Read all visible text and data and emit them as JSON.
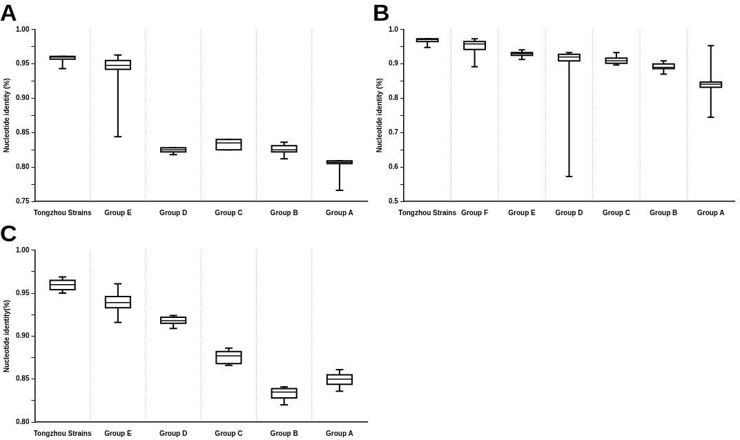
{
  "chart_data": [
    {
      "type": "box",
      "title": "A",
      "ylabel": "Nucleotide identity (%)",
      "categories": [
        "Tongzhou Strains",
        "Group E",
        "Group D",
        "Group C",
        "Group B",
        "Group A"
      ],
      "boxes": [
        {
          "low": 0.943,
          "q1": 0.957,
          "median": 0.96,
          "q3": 0.961,
          "high": 0.961
        },
        {
          "low": 0.844,
          "q1": 0.942,
          "median": 0.948,
          "q3": 0.955,
          "high": 0.963
        },
        {
          "low": 0.818,
          "q1": 0.822,
          "median": 0.825,
          "q3": 0.828,
          "high": 0.828
        },
        {
          "low": 0.825,
          "q1": 0.825,
          "median": 0.835,
          "q3": 0.84,
          "high": 0.84
        },
        {
          "low": 0.812,
          "q1": 0.822,
          "median": 0.825,
          "q3": 0.831,
          "high": 0.836
        },
        {
          "low": 0.766,
          "q1": 0.805,
          "median": 0.807,
          "q3": 0.809,
          "high": 0.809
        }
      ],
      "color": "#000000",
      "ylim": [
        0.75,
        1.0
      ],
      "yticks": [
        {
          "value": 0.75,
          "label": "0.75"
        },
        {
          "value": 0.775,
          "label": null
        },
        {
          "value": 0.8,
          "label": "0.80"
        },
        {
          "value": 0.825,
          "label": null
        },
        {
          "value": 0.85,
          "label": "0.85"
        },
        {
          "value": 0.875,
          "label": null
        },
        {
          "value": 0.9,
          "label": "0.90"
        },
        {
          "value": 0.925,
          "label": null
        },
        {
          "value": 0.95,
          "label": "0.95"
        },
        {
          "value": 0.975,
          "label": null
        },
        {
          "value": 1.0,
          "label": "1.00"
        }
      ],
      "grid": "x",
      "legend": false
    },
    {
      "type": "box",
      "title": "B",
      "ylabel": "Nucleotide identity (%)",
      "categories": [
        "Tongzhou Strains",
        "Group F",
        "Group E",
        "Group D",
        "Group C",
        "Group B",
        "Group A"
      ],
      "boxes": [
        {
          "low": 0.948,
          "q1": 0.965,
          "median": 0.971,
          "q3": 0.973,
          "high": 0.973
        },
        {
          "low": 0.892,
          "q1": 0.942,
          "median": 0.958,
          "q3": 0.965,
          "high": 0.973
        },
        {
          "low": 0.913,
          "q1": 0.925,
          "median": 0.93,
          "q3": 0.933,
          "high": 0.941
        },
        {
          "low": 0.572,
          "q1": 0.909,
          "median": 0.92,
          "q3": 0.928,
          "high": 0.933
        },
        {
          "low": 0.897,
          "q1": 0.902,
          "median": 0.909,
          "q3": 0.917,
          "high": 0.933
        },
        {
          "low": 0.87,
          "q1": 0.886,
          "median": 0.89,
          "q3": 0.9,
          "high": 0.909
        },
        {
          "low": 0.745,
          "q1": 0.832,
          "median": 0.841,
          "q3": 0.847,
          "high": 0.953
        }
      ],
      "color": "#000000",
      "ylim": [
        0.5,
        1.0
      ],
      "yticks": [
        {
          "value": 0.5,
          "label": "0.5"
        },
        {
          "value": 0.55,
          "label": null
        },
        {
          "value": 0.6,
          "label": "0.6"
        },
        {
          "value": 0.65,
          "label": null
        },
        {
          "value": 0.7,
          "label": "0.7"
        },
        {
          "value": 0.75,
          "label": null
        },
        {
          "value": 0.8,
          "label": "0.8"
        },
        {
          "value": 0.85,
          "label": null
        },
        {
          "value": 0.9,
          "label": "0.9"
        },
        {
          "value": 0.95,
          "label": null
        },
        {
          "value": 1.0,
          "label": "1.0"
        }
      ],
      "grid": "x",
      "legend": false
    },
    {
      "type": "box",
      "title": "C",
      "ylabel": "Nucleotide identity(%)",
      "categories": [
        "Tongzhou Strains",
        "Group E",
        "Group D",
        "Group C",
        "Group B",
        "Group A"
      ],
      "boxes": [
        {
          "low": 0.95,
          "q1": 0.954,
          "median": 0.96,
          "q3": 0.965,
          "high": 0.969
        },
        {
          "low": 0.916,
          "q1": 0.933,
          "median": 0.939,
          "q3": 0.946,
          "high": 0.961
        },
        {
          "low": 0.909,
          "q1": 0.915,
          "median": 0.918,
          "q3": 0.922,
          "high": 0.924
        },
        {
          "low": 0.866,
          "q1": 0.868,
          "median": 0.877,
          "q3": 0.882,
          "high": 0.886
        },
        {
          "low": 0.82,
          "q1": 0.828,
          "median": 0.835,
          "q3": 0.839,
          "high": 0.841
        },
        {
          "low": 0.836,
          "q1": 0.844,
          "median": 0.85,
          "q3": 0.855,
          "high": 0.861
        }
      ],
      "color": "#000000",
      "ylim": [
        0.8,
        1.0
      ],
      "yticks": [
        {
          "value": 0.8,
          "label": "0.80"
        },
        {
          "value": 0.825,
          "label": null
        },
        {
          "value": 0.85,
          "label": "0.85"
        },
        {
          "value": 0.875,
          "label": null
        },
        {
          "value": 0.9,
          "label": "0.90"
        },
        {
          "value": 0.925,
          "label": null
        },
        {
          "value": 0.95,
          "label": "0.95"
        },
        {
          "value": 0.975,
          "label": null
        },
        {
          "value": 1.0,
          "label": "1.00"
        }
      ],
      "grid": "x",
      "legend": false
    }
  ]
}
